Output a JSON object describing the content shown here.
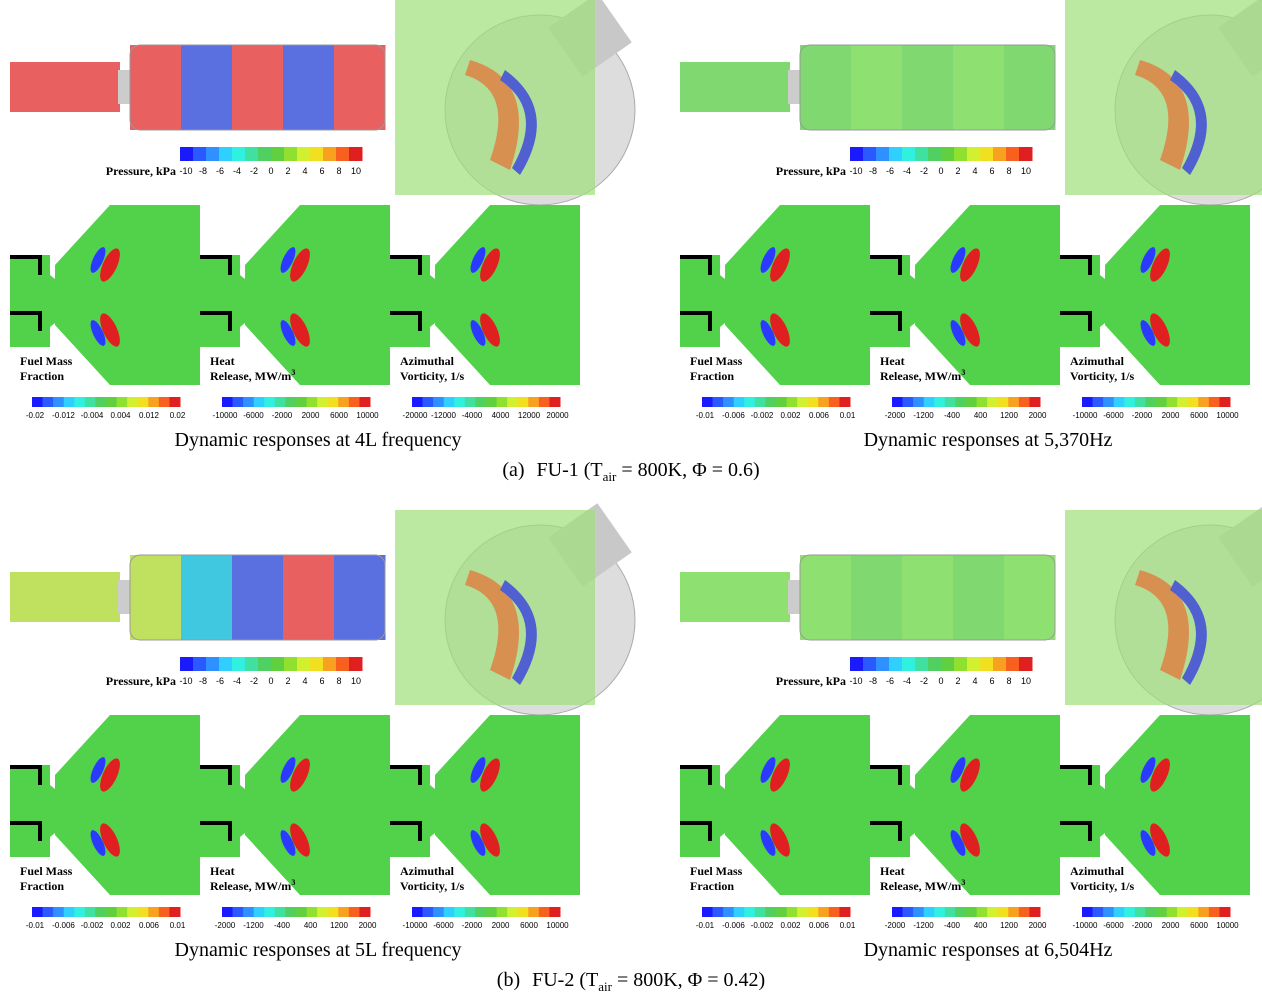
{
  "figure": {
    "parts": [
      {
        "label": "(a)",
        "caption": {
          "pre": "FU-1 (T",
          "sub": "air",
          "post": " = 800K, Φ = 0.6)"
        },
        "panels": [
          {
            "pressure": {
              "label": "Pressure, kPa",
              "ticks": [
                "-10",
                "-8",
                "-6",
                "-4",
                "-2",
                "0",
                "2",
                "4",
                "6",
                "8",
                "10"
              ]
            },
            "slices": [
              {
                "label_lines": [
                  "Fuel Mass",
                  "Fraction"
                ],
                "ticks": [
                  "-0.02",
                  "-0.012",
                  "-0.004",
                  "0.004",
                  "0.012",
                  "0.02"
                ]
              },
              {
                "label_lines": [
                  "Heat",
                  "Release, MW/m"
                ],
                "label_sup": "3",
                "ticks": [
                  "-10000",
                  "-6000",
                  "-2000",
                  "2000",
                  "6000",
                  "10000"
                ]
              },
              {
                "label_lines": [
                  "Azimuthal",
                  "Vorticity, 1/s"
                ],
                "ticks": [
                  "-20000",
                  "-12000",
                  "-4000",
                  "4000",
                  "12000",
                  "20000"
                ]
              }
            ],
            "caption": "Dynamic responses at 4L frequency"
          },
          {
            "pressure": {
              "label": "Pressure, kPa",
              "ticks": [
                "-10",
                "-8",
                "-6",
                "-4",
                "-2",
                "0",
                "2",
                "4",
                "6",
                "8",
                "10"
              ]
            },
            "slices": [
              {
                "label_lines": [
                  "Fuel Mass",
                  "Fraction"
                ],
                "ticks": [
                  "-0.01",
                  "-0.006",
                  "-0.002",
                  "0.002",
                  "0.006",
                  "0.01"
                ]
              },
              {
                "label_lines": [
                  "Heat",
                  "Release, MW/m"
                ],
                "label_sup": "3",
                "ticks": [
                  "-2000",
                  "-1200",
                  "-400",
                  "400",
                  "1200",
                  "2000"
                ]
              },
              {
                "label_lines": [
                  "Azimuthal",
                  "Vorticity, 1/s"
                ],
                "ticks": [
                  "-10000",
                  "-6000",
                  "-2000",
                  "2000",
                  "6000",
                  "10000"
                ]
              }
            ],
            "caption": "Dynamic responses at 5,370Hz"
          }
        ]
      },
      {
        "label": "(b)",
        "caption": {
          "pre": "FU-2 (T",
          "sub": "air",
          "post": " = 800K, Φ = 0.42)"
        },
        "panels": [
          {
            "pressure": {
              "label": "Pressure, kPa",
              "ticks": [
                "-10",
                "-8",
                "-6",
                "-4",
                "-2",
                "0",
                "2",
                "4",
                "6",
                "8",
                "10"
              ]
            },
            "slices": [
              {
                "label_lines": [
                  "Fuel Mass",
                  "Fraction"
                ],
                "ticks": [
                  "-0.01",
                  "-0.006",
                  "-0.002",
                  "0.002",
                  "0.006",
                  "0.01"
                ]
              },
              {
                "label_lines": [
                  "Heat",
                  "Release, MW/m"
                ],
                "label_sup": "3",
                "ticks": [
                  "-2000",
                  "-1200",
                  "-400",
                  "400",
                  "1200",
                  "2000"
                ]
              },
              {
                "label_lines": [
                  "Azimuthal",
                  "Vorticity, 1/s"
                ],
                "ticks": [
                  "-10000",
                  "-6000",
                  "-2000",
                  "2000",
                  "6000",
                  "10000"
                ]
              }
            ],
            "caption": "Dynamic responses at 5L frequency"
          },
          {
            "pressure": {
              "label": "Pressure, kPa",
              "ticks": [
                "-10",
                "-8",
                "-6",
                "-4",
                "-2",
                "0",
                "2",
                "4",
                "6",
                "8",
                "10"
              ]
            },
            "slices": [
              {
                "label_lines": [
                  "Fuel Mass",
                  "Fraction"
                ],
                "ticks": [
                  "-0.01",
                  "-0.006",
                  "-0.002",
                  "0.002",
                  "0.006",
                  "0.01"
                ]
              },
              {
                "label_lines": [
                  "Heat",
                  "Release, MW/m"
                ],
                "label_sup": "3",
                "ticks": [
                  "-2000",
                  "-1200",
                  "-400",
                  "400",
                  "1200",
                  "2000"
                ]
              },
              {
                "label_lines": [
                  "Azimuthal",
                  "Vorticity, 1/s"
                ],
                "ticks": [
                  "-10000",
                  "-6000",
                  "-2000",
                  "2000",
                  "6000",
                  "10000"
                ]
              }
            ],
            "caption": "Dynamic responses at 6,504Hz"
          }
        ]
      }
    ]
  }
}
